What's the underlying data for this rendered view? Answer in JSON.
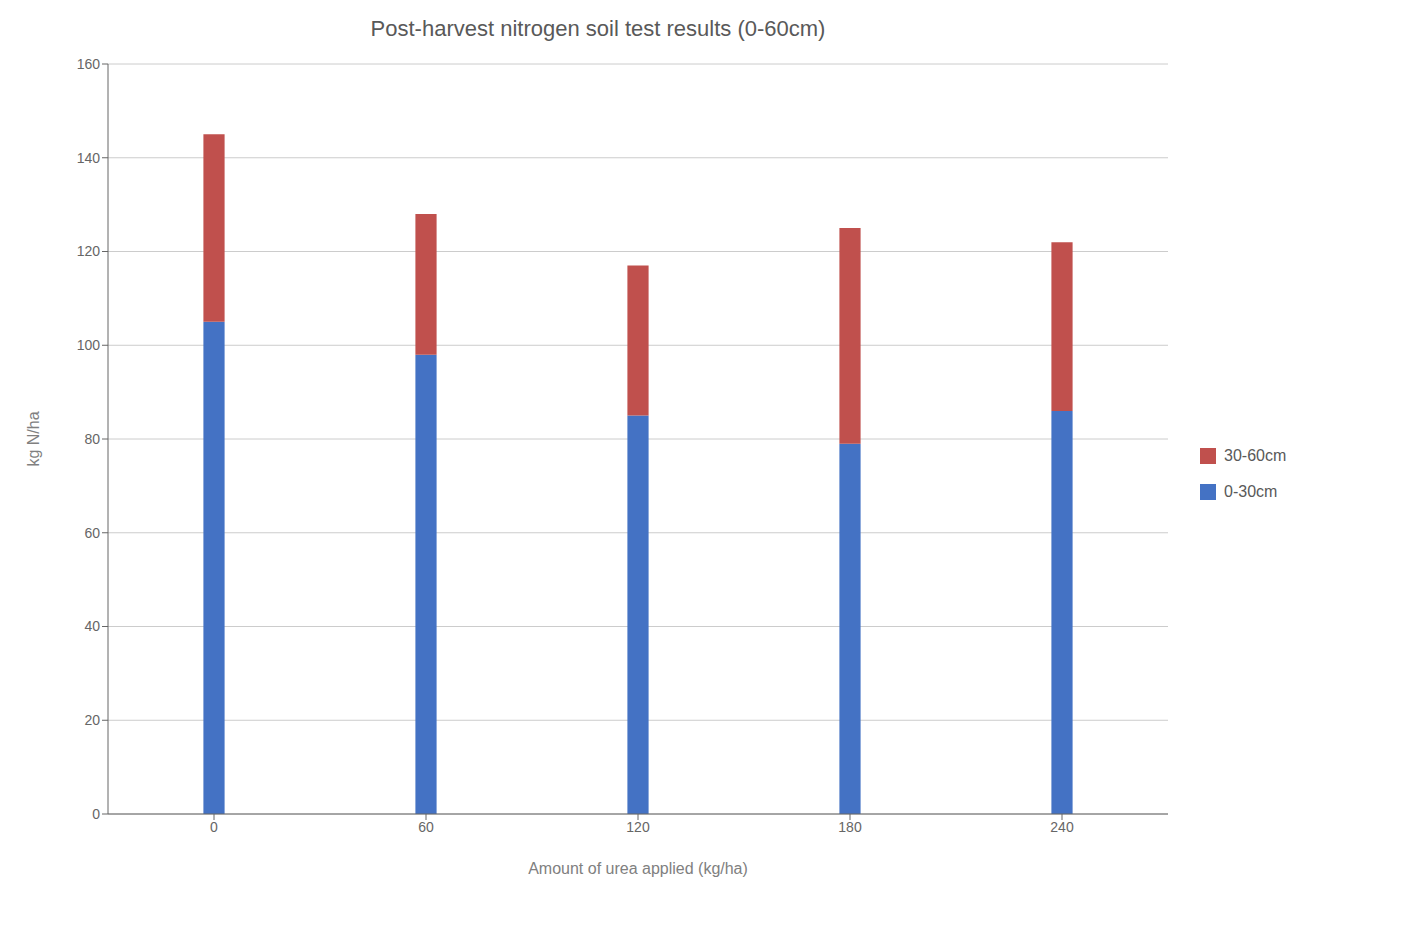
{
  "chart_data": {
    "type": "bar",
    "stacked": true,
    "title": "Post-harvest nitrogen soil test results (0-60cm)",
    "xlabel": "Amount of urea applied (kg/ha)",
    "ylabel": "kg N/ha",
    "categories": [
      0,
      60,
      120,
      180,
      240
    ],
    "series": [
      {
        "name": "0-30cm",
        "color": "#4472C4",
        "values": [
          105,
          98,
          85,
          79,
          86
        ]
      },
      {
        "name": "30-60cm",
        "color": "#C0504D",
        "values": [
          40,
          30,
          32,
          46,
          36
        ]
      }
    ],
    "ylim": [
      0,
      160
    ],
    "yticks": [
      0,
      20,
      40,
      60,
      80,
      100,
      120,
      140,
      160
    ],
    "grid": true,
    "legend": "right"
  }
}
